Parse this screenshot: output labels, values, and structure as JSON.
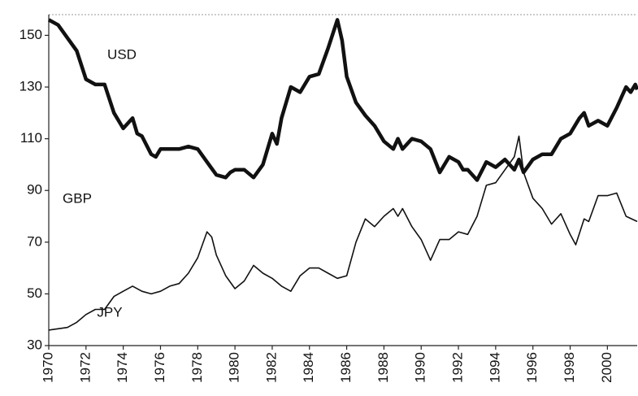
{
  "chart_data": {
    "type": "line",
    "series": [
      {
        "name": "USD",
        "color": "#111111",
        "width": 4.5,
        "x": [
          1970,
          1970.5,
          1971,
          1971.5,
          1972,
          1972.5,
          1973,
          1973.5,
          1974,
          1974.5,
          1974.75,
          1975,
          1975.5,
          1975.75,
          1976,
          1976.5,
          1977,
          1977.5,
          1978,
          1978.5,
          1979,
          1979.5,
          1979.75,
          1980,
          1980.5,
          1981,
          1981.5,
          1982,
          1982.25,
          1982.5,
          1983,
          1983.5,
          1984,
          1984.5,
          1985,
          1985.5,
          1985.75,
          1986,
          1986.5,
          1987,
          1987.5,
          1988,
          1988.5,
          1988.75,
          1989,
          1989.5,
          1990,
          1990.5,
          1991,
          1991.5,
          1992,
          1992.25,
          1992.5,
          1993,
          1993.5,
          1994,
          1994.5,
          1995,
          1995.25,
          1995.5,
          1996,
          1996.5,
          1997,
          1997.5,
          1998,
          1998.5,
          1998.75,
          1999,
          1999.5,
          2000,
          2000.5,
          2001,
          2001.25,
          2001.5,
          2001.6
        ],
        "values": [
          156,
          154,
          149,
          144,
          133,
          131,
          131,
          120,
          114,
          118,
          112,
          111,
          104,
          103,
          106,
          106,
          106,
          107,
          106,
          101,
          96,
          95,
          97,
          98,
          98,
          95,
          100,
          112,
          108,
          118,
          130,
          128,
          134,
          135,
          145,
          156,
          148,
          134,
          124,
          119,
          115,
          109,
          106,
          110,
          106,
          110,
          109,
          106,
          97,
          103,
          101,
          98,
          98,
          94,
          101,
          99,
          102,
          98,
          102,
          97,
          102,
          104,
          104,
          110,
          112,
          118,
          120,
          115,
          117,
          115,
          122,
          130,
          128,
          131,
          129
        ]
      },
      {
        "name": "JPY",
        "color": "#111111",
        "width": 1.6,
        "x": [
          1970,
          1971,
          1971.5,
          1972,
          1972.5,
          1973,
          1973.5,
          1974,
          1974.5,
          1975,
          1975.5,
          1976,
          1976.5,
          1977,
          1977.5,
          1978,
          1978.5,
          1978.75,
          1979,
          1979.5,
          1980,
          1980.5,
          1981,
          1981.5,
          1982,
          1982.5,
          1983,
          1983.5,
          1984,
          1984.5,
          1985,
          1985.5,
          1986,
          1986.5,
          1987,
          1987.5,
          1988,
          1988.5,
          1988.75,
          1989,
          1989.5,
          1990,
          1990.5,
          1991,
          1991.5,
          1992,
          1992.5,
          1993,
          1993.5,
          1994,
          1994.5,
          1995,
          1995.25,
          1995.5,
          1996,
          1996.5,
          1997,
          1997.5,
          1998,
          1998.3,
          1998.75,
          1999,
          1999.5,
          2000,
          2000.5,
          2001,
          2001.6
        ],
        "values": [
          36,
          37,
          39,
          42,
          44,
          44,
          49,
          51,
          53,
          51,
          50,
          51,
          53,
          54,
          58,
          64,
          74,
          72,
          65,
          57,
          52,
          55,
          61,
          58,
          56,
          53,
          51,
          57,
          60,
          60,
          58,
          56,
          57,
          70,
          79,
          76,
          80,
          83,
          80,
          83,
          76,
          71,
          63,
          71,
          71,
          74,
          73,
          80,
          92,
          93,
          98,
          103,
          111,
          97,
          87,
          83,
          77,
          81,
          73,
          69,
          79,
          78,
          88,
          88,
          89,
          80,
          78
        ]
      }
    ],
    "annotations": [
      "GBP"
    ],
    "xlim": [
      1970,
      2001.6
    ],
    "xticks": [
      1970,
      1972,
      1974,
      1976,
      1978,
      1980,
      1982,
      1984,
      1986,
      1988,
      1990,
      1992,
      1994,
      1996,
      1998,
      2000
    ],
    "ylim": [
      30,
      158
    ],
    "yticks": [
      30,
      50,
      70,
      90,
      110,
      130,
      150
    ]
  }
}
